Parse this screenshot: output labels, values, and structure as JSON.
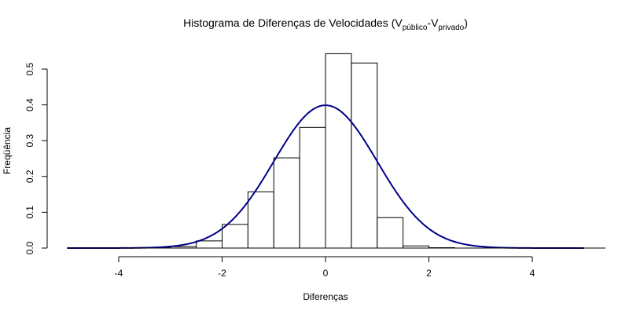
{
  "chart_data": {
    "type": "bar",
    "title": {
      "main": "Histograma de Diferenças de Velocidades (V",
      "sub1": "público",
      "mid": "-V",
      "sub2": "privado",
      "end": ")"
    },
    "xlabel": "Diferenças",
    "ylabel": "Freqüência",
    "xlim": [
      -5,
      5
    ],
    "ylim": [
      0,
      0.55
    ],
    "x_ticks": [
      -4,
      -2,
      0,
      2,
      4
    ],
    "x_tick_labels": [
      "-4",
      "-2",
      "0",
      "2",
      "4"
    ],
    "y_ticks": [
      0.0,
      0.1,
      0.2,
      0.3,
      0.4,
      0.5
    ],
    "y_tick_labels": [
      "0.0",
      "0.1",
      "0.2",
      "0.3",
      "0.4",
      "0.5"
    ],
    "bins": [
      {
        "from": -3.5,
        "to": -3.0,
        "density": 0.001
      },
      {
        "from": -3.0,
        "to": -2.5,
        "density": 0.004
      },
      {
        "from": -2.5,
        "to": -2.0,
        "density": 0.02
      },
      {
        "from": -2.0,
        "to": -1.5,
        "density": 0.066
      },
      {
        "from": -1.5,
        "to": -1.0,
        "density": 0.157
      },
      {
        "from": -1.0,
        "to": -0.5,
        "density": 0.252
      },
      {
        "from": -0.5,
        "to": 0.0,
        "density": 0.337
      },
      {
        "from": 0.0,
        "to": 0.5,
        "density": 0.543
      },
      {
        "from": 0.5,
        "to": 1.0,
        "density": 0.517
      },
      {
        "from": 1.0,
        "to": 1.5,
        "density": 0.085
      },
      {
        "from": 1.5,
        "to": 2.0,
        "density": 0.006
      },
      {
        "from": 2.0,
        "to": 2.5,
        "density": 0.001
      }
    ],
    "curve": {
      "kind": "normal-density",
      "mean": 0,
      "sd": 1,
      "x_range": [
        -5,
        5
      ],
      "color": "#00008b"
    },
    "bar_fill": "#ffffff",
    "bar_stroke": "#000000",
    "grid": false,
    "legend": "none"
  }
}
